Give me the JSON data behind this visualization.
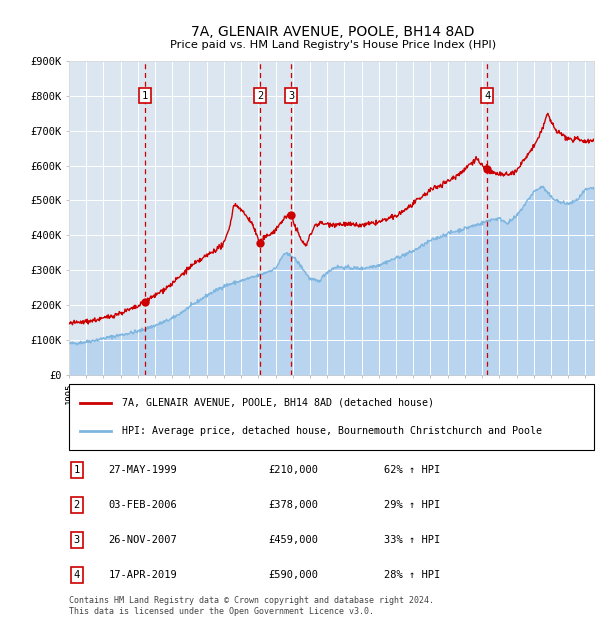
{
  "title": "7A, GLENAIR AVENUE, POOLE, BH14 8AD",
  "subtitle": "Price paid vs. HM Land Registry's House Price Index (HPI)",
  "sales": [
    {
      "num": 1,
      "date": "27-MAY-1999",
      "year": 1999.41,
      "price": 210000,
      "pct": "62%",
      "dir": "↑"
    },
    {
      "num": 2,
      "date": "03-FEB-2006",
      "year": 2006.09,
      "price": 378000,
      "pct": "29%",
      "dir": "↑"
    },
    {
      "num": 3,
      "date": "26-NOV-2007",
      "year": 2007.9,
      "price": 459000,
      "pct": "33%",
      "dir": "↑"
    },
    {
      "num": 4,
      "date": "17-APR-2019",
      "year": 2019.29,
      "price": 590000,
      "pct": "28%",
      "dir": "↑"
    }
  ],
  "legend_entries": [
    "7A, GLENAIR AVENUE, POOLE, BH14 8AD (detached house)",
    "HPI: Average price, detached house, Bournemouth Christchurch and Poole"
  ],
  "footer": "Contains HM Land Registry data © Crown copyright and database right 2024.\nThis data is licensed under the Open Government Licence v3.0.",
  "ylim": [
    0,
    900000
  ],
  "yticks": [
    0,
    100000,
    200000,
    300000,
    400000,
    500000,
    600000,
    700000,
    800000,
    900000
  ],
  "ytick_labels": [
    "£0",
    "£100K",
    "£200K",
    "£300K",
    "£400K",
    "£500K",
    "£600K",
    "£700K",
    "£800K",
    "£900K"
  ],
  "xlim_start": 1995.0,
  "xlim_end": 2025.5,
  "plot_bg_color": "#dce6f1",
  "hpi_color": "#7eb6e0",
  "hpi_fill_color": "#b8d4ee",
  "price_color": "#cc0000",
  "vline_color": "#cc0000",
  "marker_color": "#cc0000",
  "box_color": "#cc0000",
  "grid_color": "#ffffff"
}
